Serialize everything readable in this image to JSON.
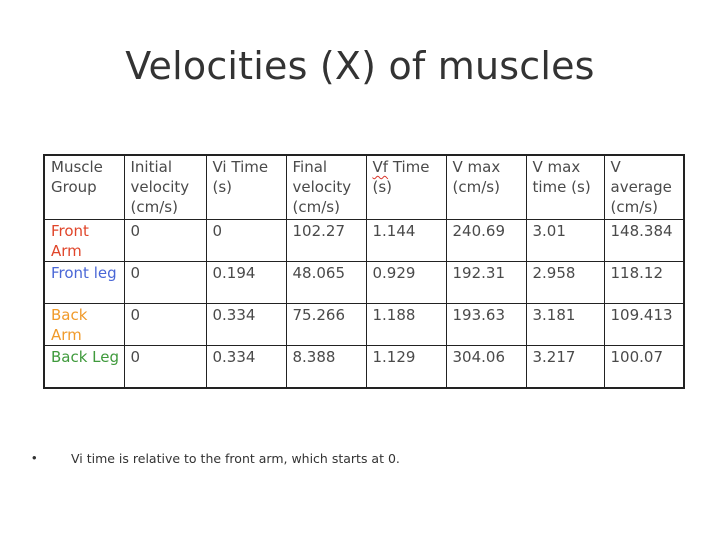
{
  "slide": {
    "title": "Velocities (X) of muscles"
  },
  "table": {
    "headers": [
      "Muscle Group",
      "Initial velocity (cm/s)",
      "Vi Time (s)",
      "Final velocity (cm/s)",
      "Vf Time (s)",
      "V max (cm/s)",
      "V max time (s)",
      "V average (cm/s)"
    ],
    "header_vf_word": "Vf",
    "header_vf_rest": " Time (s)",
    "rows": [
      {
        "group": "Front Arm",
        "color": "#e0452a",
        "cells": [
          "0",
          "0",
          "102.27",
          "1.144",
          "240.69",
          "3.01",
          "148.384"
        ]
      },
      {
        "group": "Front leg",
        "color": "#4a67d6",
        "cells": [
          "0",
          "0.194",
          "48.065",
          "0.929",
          "192.31",
          "2.958",
          "118.12"
        ]
      },
      {
        "group": "Back Arm",
        "color": "#f09a2a",
        "cells": [
          "0",
          "0.334",
          "75.266",
          "1.188",
          "193.63",
          "3.181",
          "109.413"
        ]
      },
      {
        "group": "Back Leg",
        "color": "#3f9a3c",
        "cells": [
          "0",
          "0.334",
          "8.388",
          "1.129",
          "304.06",
          "3.217",
          "100.07"
        ]
      }
    ]
  },
  "note": {
    "bullet": "•",
    "text": "Vi time is relative to the front arm, which starts at 0."
  }
}
